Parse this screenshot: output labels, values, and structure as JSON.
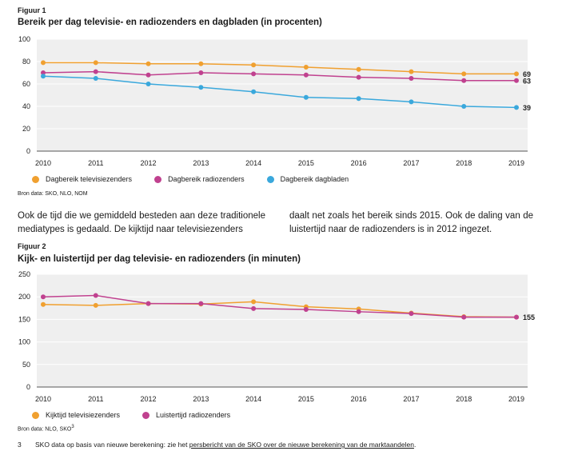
{
  "figure1": {
    "label": "Figuur 1",
    "title": "Bereik per dag televisie- en radiozenders en dagbladen (in procenten)",
    "source": "Bron data: SKO, NLO, NOM"
  },
  "figure2": {
    "label": "Figuur 2",
    "title": "Kijk- en luistertijd per dag televisie- en radiozenders (in minuten)",
    "source": "Bron data: NLO, SKO",
    "source_sup": "3"
  },
  "body_text": {
    "left": "Ook de tijd die we gemiddeld besteden aan deze traditionele mediatypes is gedaald. De kijktijd naar televisiezenders",
    "right": "daalt net zoals het bereik sinds 2015. Ook de daling van de luistertijd naar de radiozenders is in 2012 ingezet."
  },
  "footnote": {
    "number": "3",
    "text_before": "SKO data op basis van nieuwe berekening: zie het ",
    "link_text": "persbericht van de SKO over de nieuwe berekening van de marktaandelen",
    "text_after": "."
  },
  "colors": {
    "orange": "#f0a030",
    "magenta": "#c0418f",
    "blue": "#3aa8dc",
    "plot_bg": "#efefef"
  },
  "chart_data": [
    {
      "type": "line",
      "title": "Bereik per dag televisie- en radiozenders en dagbladen (in procenten)",
      "x": [
        2010,
        2011,
        2012,
        2013,
        2014,
        2015,
        2016,
        2017,
        2018,
        2019
      ],
      "ylim": [
        0,
        100
      ],
      "yticks": [
        0,
        20,
        40,
        60,
        80,
        100
      ],
      "grid": true,
      "legend": "bottom",
      "series": [
        {
          "name": "Dagbereik televisiezenders",
          "color": "#f0a030",
          "values": [
            79,
            79,
            78,
            78,
            77,
            75,
            73,
            71,
            69,
            69
          ],
          "end_label": "69"
        },
        {
          "name": "Dagbereik radiozenders",
          "color": "#c0418f",
          "values": [
            70,
            71,
            68,
            70,
            69,
            68,
            66,
            65,
            63,
            63
          ],
          "end_label": "63"
        },
        {
          "name": "Dagbereik dagbladen",
          "color": "#3aa8dc",
          "values": [
            67,
            65,
            60,
            57,
            53,
            48,
            47,
            44,
            40,
            39
          ],
          "end_label": "39"
        }
      ]
    },
    {
      "type": "line",
      "title": "Kijk- en luistertijd per dag televisie- en radiozenders (in minuten)",
      "x": [
        2010,
        2011,
        2012,
        2013,
        2014,
        2015,
        2016,
        2017,
        2018,
        2019
      ],
      "ylim": [
        0,
        250
      ],
      "yticks": [
        0,
        50,
        100,
        150,
        200,
        250
      ],
      "grid": true,
      "legend": "bottom",
      "series": [
        {
          "name": "Kijktijd televisiezenders",
          "color": "#f0a030",
          "values": [
            183,
            181,
            185,
            184,
            189,
            178,
            173,
            164,
            156,
            155
          ],
          "end_label": ""
        },
        {
          "name": "Luistertijd radiozenders",
          "color": "#c0418f",
          "values": [
            200,
            203,
            185,
            185,
            174,
            172,
            167,
            163,
            155,
            155
          ],
          "end_label": "155"
        }
      ]
    }
  ]
}
